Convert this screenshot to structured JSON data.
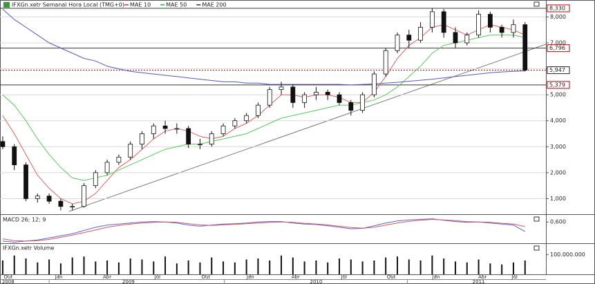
{
  "chart_data": {
    "type": "candlestick",
    "title": "IFXGn.xetr Semanal Hora Local (TMG+0)",
    "x": [
      0,
      3,
      6,
      9,
      12,
      15,
      18,
      21,
      24,
      27,
      30,
      33,
      36,
      39,
      42,
      45,
      48,
      51,
      54,
      57,
      60,
      63,
      66,
      69,
      72,
      75,
      78,
      81,
      84,
      87,
      90,
      93,
      96,
      99,
      102,
      105,
      108,
      111,
      114,
      117,
      120,
      123,
      126,
      129,
      132,
      135
    ],
    "open": [
      3200,
      3000,
      2300,
      1000,
      1100,
      900,
      700,
      700,
      1500,
      2000,
      2400,
      2600,
      3100,
      3500,
      3800,
      3700,
      3700,
      3100,
      3100,
      3500,
      3800,
      4000,
      4200,
      4600,
      5200,
      5300,
      4700,
      5000,
      5100,
      5000,
      4700,
      4400,
      5000,
      5800,
      6700,
      7300,
      7100,
      7600,
      8200,
      7400,
      7000,
      7300,
      8100,
      7600,
      7400,
      7700
    ],
    "high": [
      3400,
      3100,
      2400,
      1200,
      1200,
      1000,
      800,
      1600,
      2100,
      2500,
      2700,
      3200,
      3600,
      3900,
      4000,
      3900,
      3800,
      3300,
      3600,
      3900,
      4100,
      4300,
      4700,
      5300,
      5500,
      5400,
      5100,
      5300,
      5200,
      5100,
      4800,
      5100,
      5900,
      6800,
      7400,
      7500,
      7800,
      8330,
      8300,
      7600,
      7400,
      8250,
      8200,
      7700,
      7900,
      7800
    ],
    "low": [
      2900,
      2100,
      900,
      850,
      800,
      550,
      550,
      650,
      1400,
      1900,
      2300,
      2500,
      2900,
      3300,
      3500,
      3500,
      2950,
      2900,
      3000,
      3400,
      3700,
      3900,
      4100,
      4500,
      5000,
      4500,
      4500,
      4800,
      4800,
      4600,
      4200,
      4300,
      4900,
      5700,
      6600,
      6800,
      7000,
      7400,
      7200,
      6800,
      6900,
      7200,
      7400,
      7200,
      7200,
      5900
    ],
    "close": [
      3000,
      2300,
      1000,
      1100,
      900,
      700,
      700,
      1500,
      2000,
      2400,
      2600,
      3100,
      3500,
      3800,
      3700,
      3700,
      3100,
      3100,
      3500,
      3800,
      4000,
      4200,
      4600,
      5200,
      5300,
      4700,
      5000,
      5100,
      5000,
      4700,
      4400,
      5000,
      5800,
      6700,
      7300,
      7100,
      7600,
      8200,
      7400,
      7000,
      7300,
      8100,
      7600,
      7400,
      7700,
      5947
    ],
    "series": [
      {
        "name": "MAE 10",
        "color": "#e06060",
        "values": [
          4200,
          3500,
          2700,
          1900,
          1400,
          1000,
          800,
          900,
          1200,
          1700,
          2200,
          2500,
          2900,
          3300,
          3600,
          3700,
          3600,
          3400,
          3300,
          3400,
          3700,
          3900,
          4200,
          4600,
          5000,
          5000,
          4900,
          5000,
          5000,
          4900,
          4700,
          4700,
          5100,
          5700,
          6400,
          6900,
          7200,
          7600,
          7700,
          7500,
          7300,
          7500,
          7700,
          7600,
          7500,
          7300
        ]
      },
      {
        "name": "MAE 50",
        "color": "#55cc55",
        "values": [
          5000,
          4600,
          4000,
          3300,
          2700,
          2200,
          1800,
          1700,
          1800,
          1900,
          2100,
          2300,
          2500,
          2700,
          2900,
          3000,
          3100,
          3100,
          3200,
          3300,
          3400,
          3500,
          3700,
          3900,
          4100,
          4200,
          4300,
          4400,
          4500,
          4600,
          4600,
          4700,
          4800,
          5000,
          5300,
          5700,
          6100,
          6600,
          6900,
          7000,
          7100,
          7200,
          7300,
          7300,
          7300,
          7200
        ]
      },
      {
        "name": "MAE 200",
        "color": "#5555cc",
        "values": [
          8300,
          7900,
          7600,
          7300,
          7000,
          6800,
          6600,
          6400,
          6300,
          6100,
          6000,
          5900,
          5850,
          5800,
          5750,
          5700,
          5650,
          5600,
          5550,
          5500,
          5500,
          5450,
          5450,
          5400,
          5400,
          5400,
          5400,
          5400,
          5400,
          5400,
          5380,
          5400,
          5420,
          5450,
          5480,
          5520,
          5560,
          5600,
          5650,
          5700,
          5750,
          5800,
          5850,
          5880,
          5900,
          5920
        ]
      }
    ],
    "levels": [
      {
        "value": 8330,
        "label": "8,330",
        "color": "#c00000",
        "style": "solid"
      },
      {
        "value": 6796,
        "label": "6,796",
        "color": "#c00000",
        "style": "solid"
      },
      {
        "value": 5947,
        "label": "5,947",
        "color": "#222222",
        "style": "dotted"
      },
      {
        "value": 5379,
        "label": "5,379",
        "color": "#c00000",
        "style": "solid"
      }
    ],
    "xlim": [
      -0.7,
      140.4
    ],
    "xticks": [
      {
        "value": 1.4,
        "label": "Out"
      },
      {
        "value": 14.5,
        "label": "Jan"
      },
      {
        "value": 27,
        "label": "Abr"
      },
      {
        "value": 40,
        "label": "Jul"
      },
      {
        "value": 52.5,
        "label": "Out"
      },
      {
        "value": 64,
        "label": "Jan"
      },
      {
        "value": 75.7,
        "label": "Abr"
      },
      {
        "value": 88.2,
        "label": "Jul"
      },
      {
        "value": 100.4,
        "label": "Out"
      },
      {
        "value": 112,
        "label": "Jan"
      },
      {
        "value": 124,
        "label": "Abr"
      },
      {
        "value": 132.3,
        "label": "Jul"
      }
    ],
    "years": [
      {
        "value": 1.4,
        "label": "2008"
      },
      {
        "value": 32.5,
        "label": "2009"
      },
      {
        "value": 81,
        "label": "2010"
      },
      {
        "value": 123,
        "label": "2011"
      }
    ],
    "year_breaks": [
      12,
      57.3,
      104.6
    ],
    "ylim": [
      400,
      8650
    ],
    "yticks": [
      {
        "value": 1000,
        "label": "1,000"
      },
      {
        "value": 2000,
        "label": "2,000"
      },
      {
        "value": 3000,
        "label": "3,000"
      },
      {
        "value": 4000,
        "label": "4,000"
      },
      {
        "value": 5000,
        "label": "5,000"
      },
      {
        "value": 6000,
        "label": "6,000"
      },
      {
        "value": 7000,
        "label": "7,000"
      },
      {
        "value": 8000,
        "label": "8,000"
      }
    ],
    "grid": true,
    "macd": {
      "title": "MACD 26; 12; 9",
      "ylim": [
        -0.4,
        0.9
      ],
      "yticks": [
        {
          "value": 0.6,
          "label": "0,600"
        }
      ],
      "series": [
        {
          "color": "#5566dd",
          "values": [
            -0.3,
            -0.35,
            -0.3,
            -0.25,
            -0.15,
            -0.05,
            0.05,
            0.2,
            0.35,
            0.45,
            0.5,
            0.55,
            0.6,
            0.62,
            0.6,
            0.55,
            0.45,
            0.4,
            0.45,
            0.5,
            0.52,
            0.55,
            0.6,
            0.62,
            0.62,
            0.55,
            0.5,
            0.48,
            0.42,
            0.35,
            0.28,
            0.3,
            0.42,
            0.55,
            0.65,
            0.7,
            0.72,
            0.75,
            0.68,
            0.62,
            0.58,
            0.6,
            0.55,
            0.5,
            0.45,
            0.15
          ]
        },
        {
          "color": "#dd5555",
          "values": [
            -0.2,
            -0.28,
            -0.3,
            -0.28,
            -0.22,
            -0.12,
            -0.02,
            0.1,
            0.22,
            0.35,
            0.44,
            0.5,
            0.55,
            0.58,
            0.6,
            0.58,
            0.52,
            0.46,
            0.44,
            0.46,
            0.49,
            0.52,
            0.55,
            0.58,
            0.6,
            0.58,
            0.54,
            0.5,
            0.46,
            0.4,
            0.34,
            0.31,
            0.35,
            0.45,
            0.55,
            0.63,
            0.68,
            0.72,
            0.7,
            0.66,
            0.62,
            0.6,
            0.58,
            0.54,
            0.5,
            0.38
          ]
        }
      ]
    },
    "volume": {
      "title": "IFXGn.xetr Volume",
      "ylim": [
        0,
        150000000
      ],
      "yticks": [
        {
          "value": 100000000,
          "label": "100.000.000"
        }
      ],
      "color": "#111111",
      "values": [
        70000000,
        95000000,
        80000000,
        60000000,
        75000000,
        55000000,
        85000000,
        90000000,
        65000000,
        70000000,
        60000000,
        80000000,
        75000000,
        65000000,
        90000000,
        55000000,
        70000000,
        60000000,
        85000000,
        65000000,
        60000000,
        75000000,
        80000000,
        70000000,
        95000000,
        85000000,
        65000000,
        70000000,
        60000000,
        80000000,
        75000000,
        65000000,
        70000000,
        85000000,
        90000000,
        75000000,
        70000000,
        95000000,
        80000000,
        65000000,
        60000000,
        75000000,
        55000000,
        50000000,
        60000000,
        70000000
      ]
    }
  }
}
